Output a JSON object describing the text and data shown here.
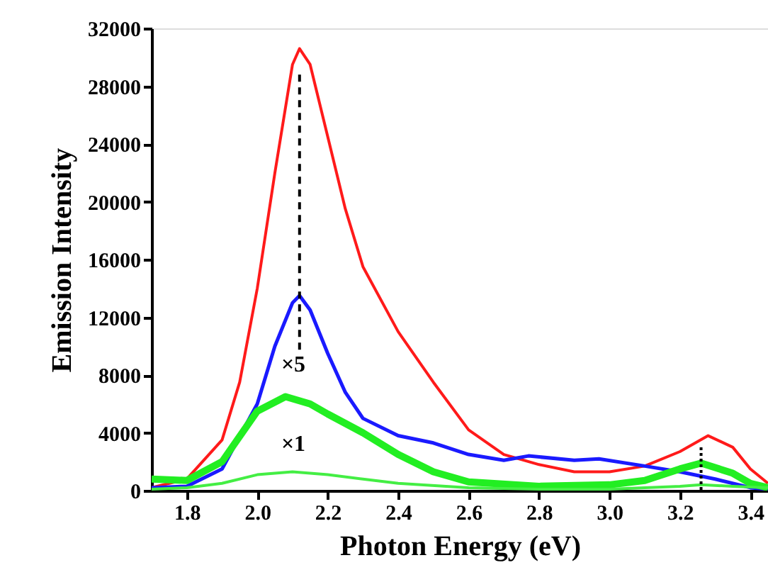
{
  "chart_data": {
    "type": "line",
    "xlabel": "Photon Energy (eV)",
    "ylabel": "Emission Intensity",
    "xlim": [
      1.7,
      3.45
    ],
    "ylim": [
      0,
      32000
    ],
    "xticks": [
      {
        "value": 1.8,
        "label": "1.8"
      },
      {
        "value": 2.0,
        "label": "2.0"
      },
      {
        "value": 2.2,
        "label": "2.2"
      },
      {
        "value": 2.4,
        "label": "2.4"
      },
      {
        "value": 2.6,
        "label": "2.6"
      },
      {
        "value": 2.8,
        "label": "2.8"
      },
      {
        "value": 3.0,
        "label": "3.0"
      },
      {
        "value": 3.2,
        "label": "3.2"
      },
      {
        "value": 3.4,
        "label": "3.4"
      }
    ],
    "yticks": [
      0,
      4000,
      8000,
      12000,
      16000,
      20000,
      24000,
      28000,
      32000
    ],
    "grid": false,
    "marker": "none",
    "line_style": "solid",
    "annotations": [
      "×5",
      "×1"
    ],
    "series": [
      {
        "color": "#ff1a1a",
        "x": [
          1.7,
          1.8,
          1.9,
          1.95,
          2.0,
          2.05,
          2.1,
          2.12,
          2.15,
          2.2,
          2.25,
          2.3,
          2.4,
          2.5,
          2.6,
          2.7,
          2.8,
          2.9,
          3.0,
          3.1,
          3.2,
          3.28,
          3.35,
          3.4,
          3.45
        ],
        "values": [
          200,
          800,
          3500,
          7500,
          14000,
          22000,
          29500,
          30600,
          29500,
          24500,
          19500,
          15500,
          11000,
          7500,
          4200,
          2500,
          1800,
          1300,
          1300,
          1700,
          2700,
          3800,
          3000,
          1500,
          500
        ]
      },
      {
        "color": "#1a1aff",
        "x": [
          1.7,
          1.8,
          1.9,
          2.0,
          2.05,
          2.1,
          2.12,
          2.15,
          2.2,
          2.25,
          2.3,
          2.4,
          2.5,
          2.6,
          2.7,
          2.77,
          2.9,
          2.97,
          3.1,
          3.2,
          3.3,
          3.4,
          3.45
        ],
        "values": [
          200,
          300,
          1500,
          6000,
          10000,
          13000,
          13500,
          12500,
          9500,
          6800,
          5000,
          3800,
          3300,
          2500,
          2100,
          2400,
          2100,
          2200,
          1700,
          1300,
          800,
          200,
          100
        ]
      },
      {
        "color": "#22ee22",
        "x": [
          1.7,
          1.8,
          1.9,
          2.0,
          2.08,
          2.15,
          2.2,
          2.3,
          2.4,
          2.5,
          2.6,
          2.8,
          3.0,
          3.1,
          3.2,
          3.26,
          3.35,
          3.4,
          3.45
        ],
        "values": [
          800,
          700,
          2000,
          5500,
          6500,
          6000,
          5300,
          4000,
          2500,
          1300,
          600,
          300,
          400,
          700,
          1500,
          1900,
          1200,
          500,
          200
        ]
      },
      {
        "color": "#44ee44",
        "x": [
          1.7,
          1.8,
          1.9,
          2.0,
          2.1,
          2.2,
          2.3,
          2.4,
          2.6,
          2.8,
          3.0,
          3.2,
          3.26,
          3.35,
          3.45
        ],
        "values": [
          100,
          200,
          500,
          1100,
          1300,
          1100,
          800,
          500,
          200,
          100,
          100,
          300,
          400,
          300,
          200
        ]
      },
      {
        "color": "#000000",
        "line_style": "dashed",
        "x": [
          2.12,
          2.12
        ],
        "values": [
          28800,
          9500
        ]
      },
      {
        "color": "#000000",
        "line_style": "dotted",
        "x": [
          3.26,
          3.26
        ],
        "values": [
          3000,
          0
        ]
      }
    ]
  }
}
